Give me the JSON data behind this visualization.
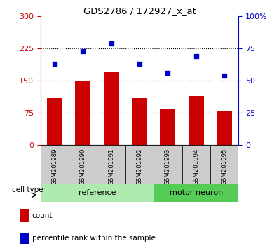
{
  "title": "GDS2786 / 172927_x_at",
  "samples": [
    "GSM201989",
    "GSM201990",
    "GSM201991",
    "GSM201992",
    "GSM201993",
    "GSM201994",
    "GSM201995"
  ],
  "counts": [
    110,
    150,
    170,
    110,
    85,
    115,
    80
  ],
  "percentiles": [
    63,
    73,
    79,
    63,
    56,
    69,
    54
  ],
  "group_boundary": 4,
  "left_ylim": [
    0,
    300
  ],
  "right_ylim": [
    0,
    100
  ],
  "left_yticks": [
    0,
    75,
    150,
    225,
    300
  ],
  "right_yticks": [
    0,
    25,
    50,
    75,
    100
  ],
  "right_yticklabels": [
    "0",
    "25",
    "50",
    "75",
    "100%"
  ],
  "bar_color": "#cc0000",
  "dot_color": "#0000cc",
  "ref_color": "#aeeaae",
  "motor_color": "#55cc55",
  "sample_box_bg": "#cccccc",
  "grid_color": "black",
  "grid_lines": [
    75,
    150,
    225
  ]
}
